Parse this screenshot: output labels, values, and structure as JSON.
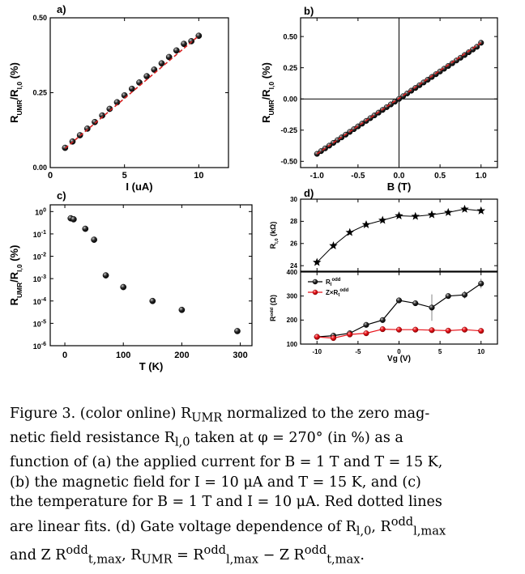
{
  "caption": {
    "lines": [
      "Figure 3. (color online) R<sub>UMR</sub> normalized to the zero mag-",
      "netic field resistance R<sub>l,0</sub> taken at φ = 270° (in %) as a",
      "function of (a) the applied current for B = 1 T and T = 15 K,",
      "(b) the magnetic field for I = 10 μA and T = 15 K, and (c)",
      "the temperature for B = 1 T and I = 10 μA. Red dotted lines",
      "are linear fits. (d) Gate voltage dependence of R<sub>l,0</sub>, R<sup>odd</sup><sub>l,max</sub>",
      "and Z R<sup>odd</sup><sub>t,max</sub>, R<sub>UMR</sub> = R<sup>odd</sup><sub>l,max</sub> − Z R<sup>odd</sup><sub>t,max</sub>."
    ]
  },
  "colors": {
    "black_marker": "#1a1a1a",
    "red_marker": "#e8121a",
    "fit_line": "#d62020",
    "axis": "#000000"
  },
  "chart_data": [
    {
      "panel": "a)",
      "type": "scatter",
      "xlabel": "I (uA)",
      "ylabel": "R_UMR/R_l,0 (%)",
      "xlim": [
        0,
        12
      ],
      "ylim": [
        0,
        0.5
      ],
      "xticks": [
        0,
        5,
        10
      ],
      "xticklabels": [
        "0",
        "5",
        "10"
      ],
      "yticks": [
        0,
        0.25,
        0.5
      ],
      "yticklabels": [
        "0.00",
        "0.25",
        "0.50"
      ],
      "x": [
        1,
        1.5,
        2,
        2.5,
        3,
        3.5,
        4,
        4.5,
        5,
        5.5,
        6,
        6.5,
        7,
        7.5,
        8,
        8.5,
        9,
        9.5,
        10
      ],
      "y": [
        0.066,
        0.087,
        0.108,
        0.13,
        0.152,
        0.174,
        0.196,
        0.218,
        0.241,
        0.263,
        0.284,
        0.305,
        0.327,
        0.348,
        0.369,
        0.391,
        0.413,
        0.422,
        0.44
      ],
      "fit": {
        "x": [
          1,
          10
        ],
        "y": [
          0.064,
          0.44
        ]
      }
    },
    {
      "panel": "b)",
      "type": "scatter",
      "xlabel": "B (T)",
      "ylabel": "R_UMR/R_l,0 (%)",
      "xlim": [
        -1.2,
        1.2
      ],
      "ylim": [
        -0.55,
        0.65
      ],
      "xticks": [
        -1,
        -0.5,
        0,
        0.5,
        1
      ],
      "xticklabels": [
        "-1.0",
        "-0.5",
        "0.0",
        "0.5",
        "1.0"
      ],
      "yticks": [
        -0.5,
        -0.25,
        0,
        0.25,
        0.5
      ],
      "yticklabels": [
        "-0.50",
        "-0.25",
        "0.00",
        "0.25",
        "0.50"
      ],
      "x": [
        -1,
        -0.95,
        -0.9,
        -0.85,
        -0.8,
        -0.75,
        -0.7,
        -0.65,
        -0.6,
        -0.55,
        -0.5,
        -0.45,
        -0.4,
        -0.35,
        -0.3,
        -0.25,
        -0.2,
        -0.15,
        -0.1,
        -0.05,
        0,
        0.05,
        0.1,
        0.15,
        0.2,
        0.25,
        0.3,
        0.35,
        0.4,
        0.45,
        0.5,
        0.55,
        0.6,
        0.65,
        0.7,
        0.75,
        0.8,
        0.85,
        0.9,
        0.95,
        1
      ],
      "y": [
        -0.44,
        -0.418,
        -0.396,
        -0.374,
        -0.352,
        -0.33,
        -0.308,
        -0.286,
        -0.264,
        -0.242,
        -0.22,
        -0.198,
        -0.176,
        -0.154,
        -0.132,
        -0.11,
        -0.088,
        -0.066,
        -0.044,
        -0.022,
        0,
        0.022,
        0.044,
        0.066,
        0.088,
        0.11,
        0.132,
        0.154,
        0.176,
        0.198,
        0.22,
        0.242,
        0.264,
        0.286,
        0.308,
        0.33,
        0.352,
        0.374,
        0.396,
        0.418,
        0.45
      ],
      "fit": {
        "x": [
          -1,
          1
        ],
        "y": [
          -0.44,
          0.45
        ]
      }
    },
    {
      "panel": "c)",
      "type": "scatter",
      "xlabel": "T (K)",
      "ylabel": "R_UMR/R_l,0 (%)",
      "yscale": "log",
      "xlim": [
        -25,
        320
      ],
      "ylim": [
        1e-06,
        2
      ],
      "xticks": [
        0,
        100,
        200,
        300
      ],
      "xticklabels": [
        "0",
        "100",
        "200",
        "300"
      ],
      "yticks": [
        1e-06,
        1e-05,
        0.0001,
        0.001,
        0.01,
        0.1,
        1
      ],
      "yticklabels": [
        "10^-6",
        "10^-5",
        "10^-4",
        "10^-3",
        "10^-2",
        "10^-1",
        "10^0"
      ],
      "x": [
        10,
        15,
        35,
        50,
        70,
        100,
        150,
        200,
        295
      ],
      "y": [
        0.5,
        0.45,
        0.17,
        0.055,
        0.0014,
        0.00042,
        0.0001,
        4e-05,
        4.5e-06
      ]
    },
    {
      "panel": "d)",
      "type": "line",
      "xlabel": "Vg (V)",
      "xlim": [
        -12,
        12
      ],
      "xticks": [
        -10,
        -5,
        0,
        5,
        10
      ],
      "xticklabels": [
        "-10",
        "-5",
        "0",
        "5",
        "10"
      ],
      "top": {
        "ylabel": "R_l,0 (kΩ)",
        "ylim": [
          23.5,
          30
        ],
        "yticks": [
          24,
          26,
          28,
          30
        ],
        "yticklabels": [
          "24",
          "26",
          "28",
          "30"
        ],
        "x": [
          -10,
          -8,
          -6,
          -4,
          -2,
          0,
          2,
          4,
          6,
          8,
          10
        ],
        "y": [
          24.3,
          25.8,
          27.0,
          27.7,
          28.1,
          28.5,
          28.45,
          28.6,
          28.8,
          29.1,
          28.95
        ]
      },
      "bottom": {
        "ylabel": "R^odd (Ω)",
        "ylim": [
          100,
          400
        ],
        "yticks": [
          100,
          200,
          300,
          400
        ],
        "yticklabels": [
          "100",
          "200",
          "300",
          "400"
        ],
        "legend_position": "top-left",
        "series": [
          {
            "name": "R_l^odd",
            "marker_color": "black",
            "x": [
              -10,
              -8,
              -6,
              -4,
              -2,
              0,
              2,
              4,
              6,
              8,
              10
            ],
            "y": [
              130,
              135,
              145,
              180,
              200,
              282,
              270,
              252,
              300,
              305,
              352
            ],
            "err": [
              0,
              0,
              0,
              0,
              0,
              0,
              0,
              55,
              0,
              15,
              20
            ]
          },
          {
            "name": "Z×R_t^odd",
            "marker_color": "red",
            "x": [
              -10,
              -8,
              -6,
              -4,
              -2,
              0,
              2,
              4,
              6,
              8,
              10
            ],
            "y": [
              130,
              125,
              140,
              145,
              162,
              160,
              160,
              158,
              156,
              160,
              155
            ],
            "err": [
              0,
              0,
              0,
              0,
              0,
              0,
              0,
              0,
              0,
              0,
              0
            ]
          }
        ]
      }
    }
  ]
}
